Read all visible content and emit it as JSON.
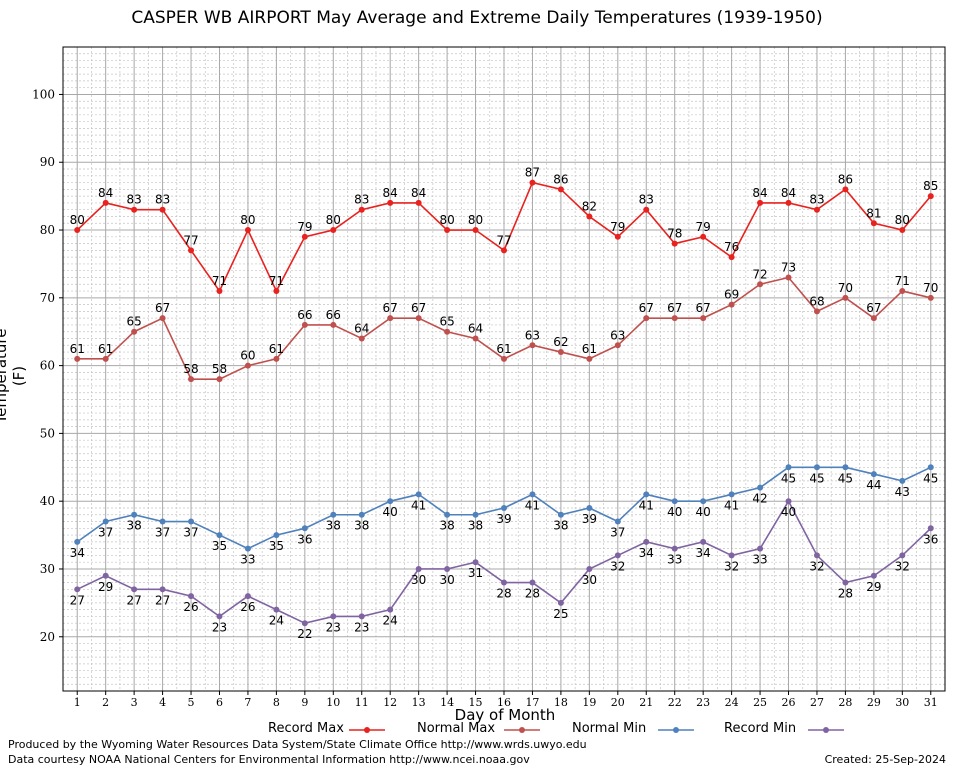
{
  "title": "CASPER WB AIRPORT May Average and Extreme Daily Temperatures (1939-1950)",
  "footer": {
    "produced_by": "Produced by the Wyoming Water Resources Data System/State Climate Office http://www.wrds.uwyo.edu",
    "data_courtesy": "Data courtesy NOAA National Centers for Environmental Information http://www.ncei.noaa.gov",
    "created": "Created:  25-Sep-2024"
  },
  "chart_data": {
    "type": "line",
    "title": "CASPER WB AIRPORT May Average and Extreme Daily Temperatures (1939-1950)",
    "xlabel": "Day of Month",
    "ylabel": "Temperature (F)",
    "xlim": [
      0.5,
      31.5
    ],
    "ylim": [
      12,
      107
    ],
    "yticks": [
      20,
      30,
      40,
      50,
      60,
      70,
      80,
      90,
      100
    ],
    "grid": true,
    "legend_position": "bottom",
    "x": [
      1,
      2,
      3,
      4,
      5,
      6,
      7,
      8,
      9,
      10,
      11,
      12,
      13,
      14,
      15,
      16,
      17,
      18,
      19,
      20,
      21,
      22,
      23,
      24,
      25,
      26,
      27,
      28,
      29,
      30,
      31
    ],
    "series": [
      {
        "name": "Record Max",
        "color": "#e8221e",
        "label_pos": "above",
        "values": [
          80,
          84,
          83,
          83,
          77,
          71,
          80,
          71,
          79,
          80,
          83,
          84,
          84,
          80,
          80,
          77,
          87,
          86,
          82,
          79,
          83,
          78,
          79,
          76,
          84,
          84,
          83,
          86,
          81,
          80,
          85
        ]
      },
      {
        "name": "Normal Max",
        "color": "#c0504d",
        "label_pos": "above",
        "values": [
          61,
          61,
          65,
          67,
          58,
          58,
          60,
          61,
          66,
          66,
          64,
          67,
          67,
          65,
          64,
          61,
          63,
          62,
          61,
          63,
          67,
          67,
          67,
          69,
          72,
          73,
          68,
          70,
          67,
          71,
          70
        ]
      },
      {
        "name": "Normal Min",
        "color": "#4f81bd",
        "label_pos": "below",
        "values": [
          34,
          37,
          38,
          37,
          37,
          35,
          33,
          35,
          36,
          38,
          38,
          40,
          41,
          38,
          38,
          39,
          41,
          38,
          39,
          37,
          41,
          40,
          40,
          41,
          42,
          45,
          45,
          45,
          44,
          43,
          45
        ]
      },
      {
        "name": "Record Min",
        "color": "#8064a2",
        "label_pos": "below",
        "values": [
          27,
          29,
          27,
          27,
          26,
          23,
          26,
          24,
          22,
          23,
          23,
          24,
          30,
          30,
          31,
          28,
          28,
          25,
          30,
          32,
          34,
          33,
          34,
          32,
          33,
          40,
          32,
          28,
          29,
          32,
          36
        ]
      }
    ]
  }
}
